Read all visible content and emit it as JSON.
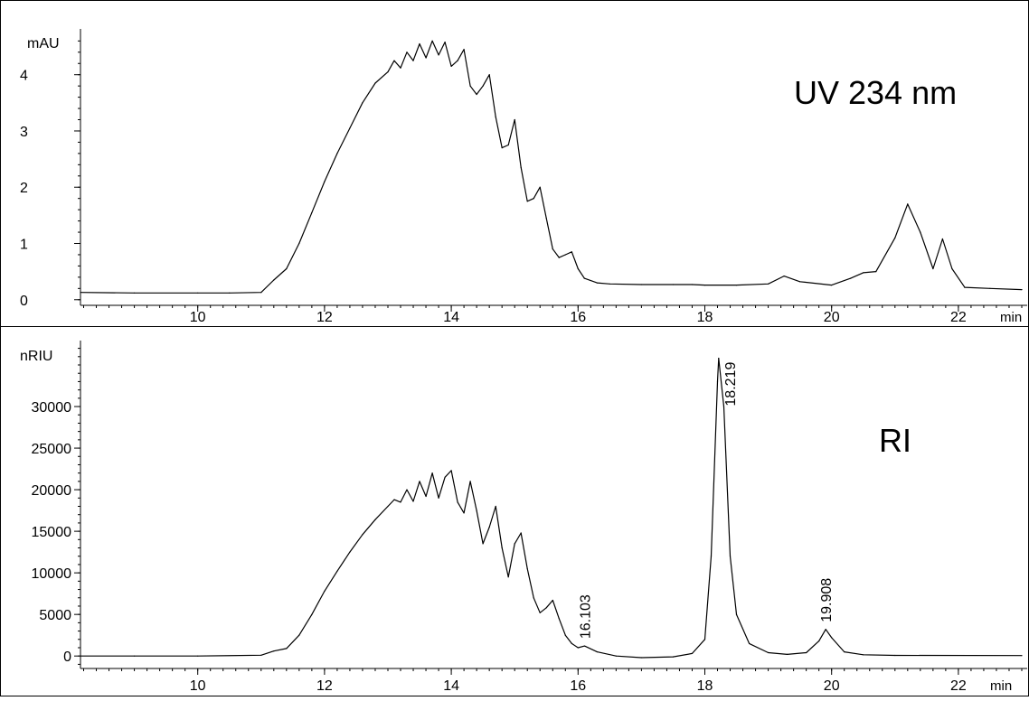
{
  "chart_data": [
    {
      "type": "line",
      "annotation": "UV 234 nm",
      "ylabel": "mAU",
      "xlabel": "min",
      "xlim": [
        8.15,
        23.0
      ],
      "ylim": [
        -0.1,
        4.75
      ],
      "xticks": [
        10,
        12,
        14,
        16,
        18,
        20,
        22
      ],
      "yticks": [
        0,
        1,
        2,
        3,
        4
      ],
      "series": [
        {
          "x": [
            8.15,
            9,
            10,
            10.5,
            11.0,
            11.2,
            11.4,
            11.6,
            11.8,
            12.0,
            12.2,
            12.4,
            12.6,
            12.8,
            13.0,
            13.1,
            13.2,
            13.3,
            13.4,
            13.5,
            13.6,
            13.7,
            13.8,
            13.9,
            14.0,
            14.1,
            14.2,
            14.3,
            14.4,
            14.5,
            14.6,
            14.7,
            14.8,
            14.9,
            15.0,
            15.1,
            15.2,
            15.3,
            15.4,
            15.5,
            15.6,
            15.7,
            15.8,
            15.9,
            16.0,
            16.1,
            16.3,
            16.5,
            17.0,
            17.5,
            17.8,
            18.0,
            18.5,
            19.0,
            19.25,
            19.5,
            20.0,
            20.3,
            20.5,
            20.7,
            21.0,
            21.2,
            21.4,
            21.6,
            21.75,
            21.9,
            22.1,
            22.5,
            23.0
          ],
          "y": [
            0.13,
            0.12,
            0.12,
            0.12,
            0.13,
            0.35,
            0.55,
            1.0,
            1.55,
            2.1,
            2.6,
            3.05,
            3.5,
            3.85,
            4.05,
            4.25,
            4.12,
            4.4,
            4.25,
            4.55,
            4.3,
            4.6,
            4.35,
            4.58,
            4.15,
            4.25,
            4.45,
            3.8,
            3.65,
            3.8,
            4.0,
            3.25,
            2.7,
            2.75,
            3.2,
            2.35,
            1.75,
            1.8,
            2.0,
            1.45,
            0.9,
            0.75,
            0.8,
            0.85,
            0.55,
            0.38,
            0.3,
            0.28,
            0.27,
            0.27,
            0.27,
            0.26,
            0.26,
            0.28,
            0.42,
            0.32,
            0.26,
            0.38,
            0.48,
            0.5,
            1.1,
            1.7,
            1.2,
            0.55,
            1.08,
            0.55,
            0.22,
            0.2,
            0.18
          ]
        }
      ]
    },
    {
      "type": "line",
      "annotation": "RI",
      "ylabel": "nRIU",
      "xlabel": "min",
      "xlim": [
        8.15,
        23.0
      ],
      "ylim": [
        -1500,
        37500
      ],
      "xticks": [
        10,
        12,
        14,
        16,
        18,
        20,
        22
      ],
      "yticks": [
        0,
        5000,
        10000,
        15000,
        20000,
        25000,
        30000
      ],
      "series": [
        {
          "x": [
            8.15,
            9,
            10,
            11.0,
            11.2,
            11.4,
            11.6,
            11.8,
            12.0,
            12.2,
            12.4,
            12.6,
            12.8,
            13.0,
            13.1,
            13.2,
            13.3,
            13.4,
            13.5,
            13.6,
            13.7,
            13.8,
            13.9,
            14.0,
            14.1,
            14.2,
            14.3,
            14.4,
            14.5,
            14.6,
            14.7,
            14.8,
            14.9,
            15.0,
            15.1,
            15.2,
            15.3,
            15.4,
            15.5,
            15.6,
            15.7,
            15.8,
            15.9,
            16.0,
            16.103,
            16.3,
            16.6,
            17.0,
            17.5,
            17.8,
            18.0,
            18.1,
            18.2,
            18.219,
            18.3,
            18.4,
            18.5,
            18.7,
            19.0,
            19.3,
            19.6,
            19.8,
            19.908,
            20.0,
            20.2,
            20.5,
            21.0,
            23.0
          ],
          "y": [
            0,
            0,
            0,
            100,
            600,
            900,
            2500,
            5000,
            7800,
            10200,
            12500,
            14600,
            16400,
            18000,
            18800,
            18500,
            20000,
            18600,
            21000,
            19200,
            22000,
            19000,
            21500,
            22300,
            18500,
            17200,
            21000,
            17500,
            13500,
            15500,
            18000,
            13000,
            9500,
            13500,
            14800,
            10500,
            7000,
            5200,
            5800,
            6700,
            4500,
            2500,
            1500,
            1000,
            1200,
            500,
            0,
            -200,
            -100,
            300,
            2000,
            12000,
            33000,
            35800,
            30000,
            12000,
            5000,
            1500,
            400,
            200,
            400,
            1800,
            3200,
            2200,
            500,
            150,
            80,
            50
          ]
        }
      ]
    },
    {
      "peak_labels": [
        "16.103",
        "18.219",
        "19.908"
      ]
    }
  ]
}
